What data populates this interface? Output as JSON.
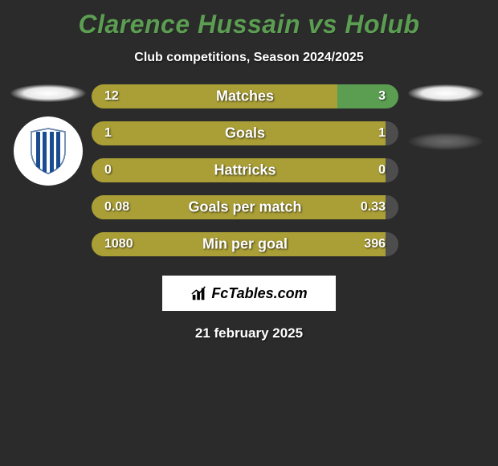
{
  "title": "Clarence Hussain vs Holub",
  "subtitle": "Club competitions, Season 2024/2025",
  "date": "21 february 2025",
  "brand": "FcTables.com",
  "colors": {
    "player1": "#aa9f36",
    "player2": "#5b9e52",
    "neutral": "#4d4d4d",
    "title": "#5b9e52",
    "bg": "#2b2b2b"
  },
  "stats": [
    {
      "label": "Matches",
      "left_val": "12",
      "right_val": "3",
      "left_pct": 80,
      "right_pct": 20,
      "right_color": "green"
    },
    {
      "label": "Goals",
      "left_val": "1",
      "right_val": "1",
      "left_pct": 96.5,
      "right_pct": 3.5,
      "right_color": "grey"
    },
    {
      "label": "Hattricks",
      "left_val": "0",
      "right_val": "0",
      "left_pct": 96.5,
      "right_pct": 3.5,
      "right_color": "grey"
    },
    {
      "label": "Goals per match",
      "left_val": "0.08",
      "right_val": "0.33",
      "left_pct": 96.5,
      "right_pct": 3.5,
      "right_color": "grey"
    },
    {
      "label": "Min per goal",
      "left_val": "1080",
      "right_val": "396",
      "left_pct": 96.5,
      "right_pct": 3.5,
      "right_color": "grey"
    }
  ]
}
